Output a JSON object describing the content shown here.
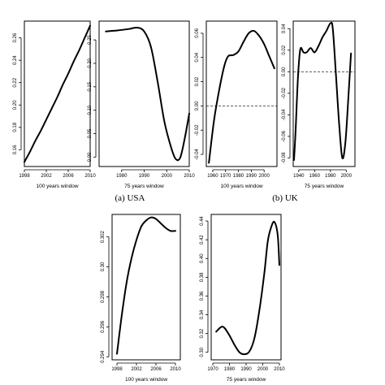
{
  "captions": {
    "usa": "(a)  USA",
    "uk": "(b)  UK"
  },
  "chart_data": [
    {
      "id": "usa-100",
      "type": "line",
      "xlabel": "100 years window",
      "xlim": [
        1998,
        2010
      ],
      "xticks": [
        1998,
        2002,
        2006,
        2010
      ],
      "ylim": [
        0.145,
        0.275
      ],
      "yticks": [
        0.16,
        0.18,
        0.2,
        0.22,
        0.24,
        0.26
      ],
      "x": [
        1998,
        1999,
        2000,
        2001,
        2002,
        2003,
        2004,
        2005,
        2006,
        2007,
        2008,
        2009,
        2010
      ],
      "y": [
        0.149,
        0.158,
        0.168,
        0.177,
        0.187,
        0.197,
        0.207,
        0.218,
        0.228,
        0.239,
        0.249,
        0.26,
        0.271
      ],
      "refline": null
    },
    {
      "id": "usa-75",
      "type": "line",
      "xlabel": "75 years window",
      "xlim": [
        1970,
        2010
      ],
      "xticks": [
        1980,
        1990,
        2000,
        2010
      ],
      "ylim": [
        -0.02,
        0.29
      ],
      "yticks": [
        0.0,
        0.05,
        0.1,
        0.15,
        0.2,
        0.25
      ],
      "x": [
        1973,
        1978,
        1983,
        1987,
        1990,
        1993,
        1996,
        1999,
        2002,
        2004,
        2006,
        2008,
        2010
      ],
      "y": [
        0.268,
        0.27,
        0.273,
        0.276,
        0.268,
        0.235,
        0.16,
        0.075,
        0.02,
        -0.004,
        -0.001,
        0.04,
        0.093
      ],
      "refline": null
    },
    {
      "id": "uk-100",
      "type": "line",
      "xlabel": "100 years window",
      "xlim": [
        1955,
        2010
      ],
      "xticks": [
        1960,
        1970,
        1980,
        1990,
        2000
      ],
      "ylim": [
        -0.05,
        0.07
      ],
      "yticks": [
        -0.04,
        -0.02,
        0.0,
        0.02,
        0.04,
        0.06
      ],
      "x": [
        1957,
        1961,
        1965,
        1969,
        1972,
        1976,
        1980,
        1984,
        1988,
        1992,
        1996,
        2000,
        2004,
        2008
      ],
      "y": [
        -0.047,
        -0.012,
        0.013,
        0.033,
        0.041,
        0.042,
        0.045,
        0.053,
        0.06,
        0.062,
        0.058,
        0.051,
        0.041,
        0.031
      ],
      "refline": 0
    },
    {
      "id": "uk-75",
      "type": "line",
      "xlabel": "75 years window",
      "xlim": [
        1933,
        2011
      ],
      "xticks": [
        1940,
        1960,
        1980,
        2000
      ],
      "ylim": [
        -0.088,
        0.047
      ],
      "yticks": [
        -0.08,
        -0.06,
        -0.04,
        -0.02,
        0.0,
        0.02,
        0.04
      ],
      "x": [
        1934,
        1936,
        1939,
        1942,
        1946,
        1950,
        1955,
        1960,
        1965,
        1970,
        1975,
        1980,
        1983,
        1987,
        1991,
        1995,
        1999,
        2003,
        2006
      ],
      "y": [
        -0.082,
        -0.055,
        -0.005,
        0.021,
        0.018,
        0.018,
        0.022,
        0.018,
        0.024,
        0.032,
        0.038,
        0.045,
        0.04,
        -0.003,
        -0.048,
        -0.08,
        -0.065,
        -0.02,
        0.017
      ],
      "refline": 0
    },
    {
      "id": "c-100",
      "type": "line",
      "xlabel": "100 years window",
      "xlim": [
        1997,
        2011
      ],
      "xticks": [
        1998,
        2002,
        2006,
        2010
      ],
      "ylim": [
        0.2938,
        0.3035
      ],
      "yticks": [
        0.294,
        0.296,
        0.298,
        0.3,
        0.302
      ],
      "x": [
        1998,
        1999,
        2000,
        2001,
        2002,
        2003,
        2004,
        2005,
        2006,
        2007,
        2008,
        2009,
        2010
      ],
      "y": [
        0.2942,
        0.2968,
        0.299,
        0.3006,
        0.3018,
        0.3027,
        0.3031,
        0.3033,
        0.3032,
        0.3029,
        0.3026,
        0.3024,
        0.3024
      ],
      "refline": null
    },
    {
      "id": "c-75",
      "type": "line",
      "xlabel": "75 years window",
      "xlim": [
        1969,
        2011
      ],
      "xticks": [
        1970,
        1980,
        1990,
        2000,
        2010
      ],
      "ylim": [
        0.292,
        0.447
      ],
      "yticks": [
        0.3,
        0.32,
        0.34,
        0.36,
        0.38,
        0.4,
        0.42,
        0.44
      ],
      "x": [
        1972,
        1975,
        1977,
        1980,
        1983,
        1986,
        1989,
        1992,
        1995,
        1998,
        2001,
        2003,
        2005,
        2007,
        2009,
        2010
      ],
      "y": [
        0.322,
        0.327,
        0.326,
        0.318,
        0.308,
        0.3,
        0.298,
        0.301,
        0.315,
        0.345,
        0.385,
        0.418,
        0.433,
        0.439,
        0.425,
        0.393
      ],
      "refline": null
    }
  ]
}
